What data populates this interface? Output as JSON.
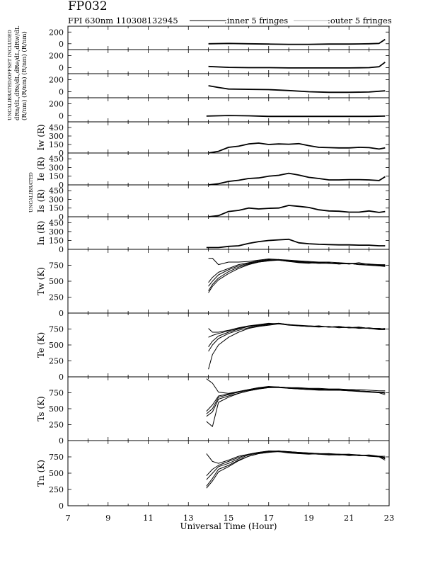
{
  "header": {
    "title": "FP032",
    "subtitle": "FPI 630nm 110308132945",
    "legend_inner": ":inner 5 fringes",
    "legend_outer": ":outer 5 fringes"
  },
  "xaxis": {
    "label": "Universal Time (Hour)",
    "ticks": [
      "7",
      "9",
      "11",
      "13",
      "15",
      "17",
      "19",
      "21",
      "23"
    ],
    "range": [
      7,
      23
    ]
  },
  "side_annotations": {
    "upper": "UNCALIBRATED/OFFSET INCLUDED",
    "upper_units": "dRn/dL,dRs/dL,dRe/dL,dRw/dL",
    "upper_units2": "(R/nm) (R/nm) (R/nm) (R/nm)",
    "middle": "UNCALIBRATED"
  },
  "colors": {
    "ink": "#000000",
    "outer": "#888888",
    "background": "#ffffff"
  },
  "chart_data": [
    {
      "type": "line",
      "panel": "dRw/dL",
      "ylabel": "",
      "yticks": [
        "0",
        "200"
      ],
      "ylim": [
        -100,
        300
      ],
      "x": [
        14,
        15,
        16,
        17,
        18,
        19,
        20,
        21,
        22,
        22.5,
        22.8
      ],
      "series": [
        {
          "values": [
            0,
            5,
            0,
            -5,
            -10,
            -10,
            -5,
            -5,
            0,
            5,
            75
          ]
        }
      ]
    },
    {
      "type": "line",
      "panel": "dRe/dL",
      "ylabel": "",
      "yticks": [
        "0",
        "200"
      ],
      "ylim": [
        -100,
        300
      ],
      "x": [
        14,
        15,
        16,
        17,
        18,
        19,
        20,
        21,
        22,
        22.5,
        22.8
      ],
      "series": [
        {
          "values": [
            20,
            5,
            0,
            0,
            -5,
            -5,
            -5,
            -5,
            0,
            15,
            90
          ]
        }
      ]
    },
    {
      "type": "line",
      "panel": "dRs/dL",
      "ylabel": "",
      "yticks": [
        "0",
        "200"
      ],
      "ylim": [
        -100,
        300
      ],
      "x": [
        14,
        14.5,
        15,
        16,
        17,
        18,
        19,
        20,
        21,
        22,
        22.8
      ],
      "series": [
        {
          "values": [
            100,
            70,
            45,
            40,
            35,
            20,
            0,
            -10,
            -10,
            -5,
            15
          ]
        }
      ]
    },
    {
      "type": "line",
      "panel": "dRn/dL",
      "ylabel": "",
      "yticks": [
        "0",
        "200"
      ],
      "ylim": [
        -100,
        300
      ],
      "x": [
        13.9,
        15,
        16,
        17,
        18,
        19,
        20,
        21,
        22,
        22.8
      ],
      "series": [
        {
          "values": [
            -5,
            5,
            0,
            -10,
            -10,
            -10,
            -10,
            -10,
            -10,
            -5
          ]
        }
      ]
    },
    {
      "type": "line",
      "panel": "Iw",
      "ylabel": "Iw (R)",
      "yticks": [
        "0",
        "150",
        "300",
        "450"
      ],
      "ylim": [
        0,
        550
      ],
      "x": [
        14,
        14.5,
        15,
        15.5,
        16,
        16.5,
        17,
        17.5,
        18,
        18.5,
        19,
        19.5,
        20,
        20.5,
        21,
        21.5,
        22,
        22.5,
        22.8
      ],
      "series": [
        {
          "values": [
            0,
            30,
            100,
            120,
            160,
            175,
            150,
            160,
            155,
            165,
            130,
            100,
            95,
            90,
            90,
            100,
            95,
            70,
            90
          ]
        }
      ]
    },
    {
      "type": "line",
      "panel": "Ie",
      "ylabel": "Ie (R)",
      "yticks": [
        "0",
        "150",
        "300",
        "450"
      ],
      "ylim": [
        0,
        550
      ],
      "x": [
        14,
        14.5,
        15,
        15.5,
        16,
        16.5,
        17,
        17.5,
        18,
        18.5,
        19,
        19.5,
        20,
        20.5,
        21,
        21.5,
        22,
        22.5,
        22.8
      ],
      "series": [
        {
          "values": [
            0,
            20,
            60,
            80,
            110,
            120,
            150,
            165,
            200,
            170,
            130,
            110,
            85,
            85,
            90,
            90,
            85,
            75,
            140
          ]
        }
      ]
    },
    {
      "type": "line",
      "panel": "Is",
      "ylabel": "Is (R)",
      "yticks": [
        "0",
        "150",
        "300",
        "450"
      ],
      "ylim": [
        0,
        550
      ],
      "x": [
        14,
        14.5,
        15,
        15.5,
        16,
        16.5,
        17,
        17.5,
        18,
        18.5,
        19,
        19.5,
        20,
        20.5,
        21,
        21.5,
        22,
        22.5,
        22.8
      ],
      "series": [
        {
          "values": [
            0,
            20,
            90,
            110,
            150,
            135,
            145,
            150,
            195,
            180,
            160,
            120,
            100,
            95,
            80,
            80,
            100,
            75,
            90
          ]
        }
      ]
    },
    {
      "type": "line",
      "panel": "In",
      "ylabel": "In (R)",
      "yticks": [
        "0",
        "150",
        "300",
        "450"
      ],
      "ylim": [
        0,
        550
      ],
      "x": [
        13.9,
        14.5,
        15,
        15.5,
        16,
        16.5,
        17,
        17.5,
        18,
        18.5,
        19,
        19.5,
        20,
        20.5,
        21,
        21.5,
        22,
        22.5,
        22.8
      ],
      "series": [
        {
          "values": [
            30,
            30,
            50,
            60,
            100,
            130,
            150,
            160,
            170,
            110,
            95,
            85,
            80,
            75,
            75,
            70,
            70,
            60,
            60
          ]
        }
      ]
    },
    {
      "type": "line",
      "panel": "Tw",
      "ylabel": "Tw (K)",
      "yticks": [
        "0",
        "250",
        "500",
        "750"
      ],
      "ylim": [
        0,
        1000
      ],
      "x": [
        14,
        14.2,
        14.5,
        15,
        15.5,
        16,
        16.5,
        17,
        17.5,
        18,
        18.5,
        19,
        19.5,
        20,
        20.5,
        21,
        21.5,
        22,
        22.5,
        22.8
      ],
      "series": [
        {
          "values": [
            350,
            450,
            550,
            650,
            720,
            770,
            800,
            820,
            830,
            810,
            800,
            790,
            780,
            780,
            780,
            770,
            780,
            760,
            740,
            740
          ]
        },
        {
          "values": [
            420,
            500,
            600,
            680,
            740,
            780,
            810,
            830,
            840,
            820,
            800,
            790,
            780,
            790,
            770,
            780,
            760,
            770,
            750,
            750
          ]
        },
        {
          "values": [
            480,
            560,
            640,
            700,
            760,
            790,
            820,
            840,
            830,
            810,
            790,
            780,
            800,
            780,
            790,
            770,
            790,
            760,
            760,
            750
          ]
        },
        {
          "values": [
            320,
            420,
            520,
            620,
            700,
            760,
            800,
            820,
            840,
            820,
            810,
            800,
            790,
            780,
            770,
            780,
            760,
            750,
            740,
            730
          ]
        },
        {
          "values": [
            860,
            860,
            760,
            800,
            800,
            810,
            830,
            850,
            840,
            830,
            820,
            810,
            800,
            800,
            790,
            780,
            780,
            770,
            760,
            760
          ]
        }
      ]
    },
    {
      "type": "line",
      "panel": "Te",
      "ylabel": "Te (K)",
      "yticks": [
        "0",
        "250",
        "500",
        "750"
      ],
      "ylim": [
        0,
        1000
      ],
      "x": [
        14,
        14.2,
        14.5,
        15,
        15.5,
        16,
        16.5,
        17,
        17.5,
        18,
        18.5,
        19,
        19.5,
        20,
        20.5,
        21,
        21.5,
        22,
        22.5,
        22.8
      ],
      "series": [
        {
          "values": [
            120,
            350,
            500,
            620,
            700,
            760,
            790,
            810,
            830,
            820,
            800,
            790,
            790,
            780,
            780,
            770,
            770,
            760,
            750,
            750
          ]
        },
        {
          "values": [
            400,
            500,
            600,
            680,
            730,
            770,
            800,
            820,
            840,
            820,
            800,
            800,
            790,
            780,
            790,
            770,
            780,
            760,
            760,
            750
          ]
        },
        {
          "values": [
            470,
            560,
            640,
            700,
            750,
            790,
            810,
            830,
            830,
            810,
            800,
            790,
            780,
            790,
            770,
            780,
            760,
            770,
            750,
            760
          ]
        },
        {
          "values": [
            620,
            650,
            680,
            720,
            760,
            790,
            810,
            830,
            840,
            820,
            810,
            800,
            790,
            780,
            780,
            770,
            770,
            760,
            740,
            740
          ]
        },
        {
          "values": [
            760,
            700,
            700,
            730,
            770,
            800,
            820,
            840,
            830,
            820,
            800,
            790,
            800,
            780,
            790,
            770,
            780,
            760,
            760,
            750
          ]
        }
      ]
    },
    {
      "type": "line",
      "panel": "Ts",
      "ylabel": "Ts (K)",
      "yticks": [
        "0",
        "250",
        "500",
        "750"
      ],
      "ylim": [
        0,
        1000
      ],
      "x": [
        13.9,
        14.2,
        14.5,
        15,
        15.5,
        16,
        16.5,
        17,
        17.5,
        18,
        18.5,
        19,
        19.5,
        20,
        20.5,
        21,
        21.5,
        22,
        22.5,
        22.8
      ],
      "series": [
        {
          "values": [
            380,
            450,
            650,
            700,
            740,
            780,
            810,
            830,
            830,
            820,
            810,
            800,
            800,
            790,
            790,
            780,
            780,
            770,
            760,
            760
          ]
        },
        {
          "values": [
            420,
            500,
            680,
            720,
            760,
            790,
            820,
            840,
            840,
            830,
            820,
            810,
            800,
            800,
            790,
            790,
            780,
            770,
            760,
            740
          ]
        },
        {
          "values": [
            460,
            560,
            700,
            730,
            770,
            800,
            830,
            850,
            840,
            830,
            820,
            810,
            810,
            800,
            800,
            790,
            780,
            770,
            750,
            760
          ]
        },
        {
          "values": [
            300,
            220,
            600,
            680,
            740,
            780,
            810,
            830,
            840,
            820,
            810,
            800,
            790,
            790,
            790,
            780,
            770,
            760,
            750,
            720
          ]
        },
        {
          "values": [
            970,
            900,
            760,
            740,
            770,
            800,
            830,
            840,
            840,
            830,
            830,
            820,
            820,
            810,
            810,
            800,
            800,
            790,
            780,
            780
          ]
        }
      ]
    },
    {
      "type": "line",
      "panel": "Tn",
      "ylabel": "Tn (K)",
      "yticks": [
        "0",
        "250",
        "500",
        "750"
      ],
      "ylim": [
        0,
        1000
      ],
      "x": [
        13.9,
        14.2,
        14.5,
        15,
        15.5,
        16,
        16.5,
        17,
        17.5,
        18,
        18.5,
        19,
        19.5,
        20,
        20.5,
        21,
        21.5,
        22,
        22.5,
        22.8
      ],
      "series": [
        {
          "values": [
            300,
            420,
            560,
            620,
            700,
            760,
            800,
            820,
            830,
            820,
            810,
            800,
            790,
            800,
            780,
            790,
            770,
            780,
            760,
            740
          ]
        },
        {
          "values": [
            400,
            500,
            600,
            650,
            720,
            780,
            810,
            830,
            840,
            820,
            800,
            800,
            790,
            780,
            790,
            770,
            780,
            760,
            750,
            730
          ]
        },
        {
          "values": [
            460,
            560,
            620,
            680,
            740,
            790,
            820,
            840,
            830,
            810,
            800,
            790,
            800,
            780,
            780,
            780,
            770,
            770,
            760,
            720
          ]
        },
        {
          "values": [
            270,
            380,
            520,
            600,
            690,
            760,
            800,
            820,
            840,
            830,
            820,
            810,
            800,
            790,
            790,
            780,
            770,
            770,
            750,
            700
          ]
        },
        {
          "values": [
            800,
            680,
            650,
            700,
            760,
            790,
            820,
            840,
            840,
            830,
            820,
            810,
            800,
            800,
            790,
            790,
            780,
            770,
            760,
            760
          ]
        }
      ]
    }
  ]
}
